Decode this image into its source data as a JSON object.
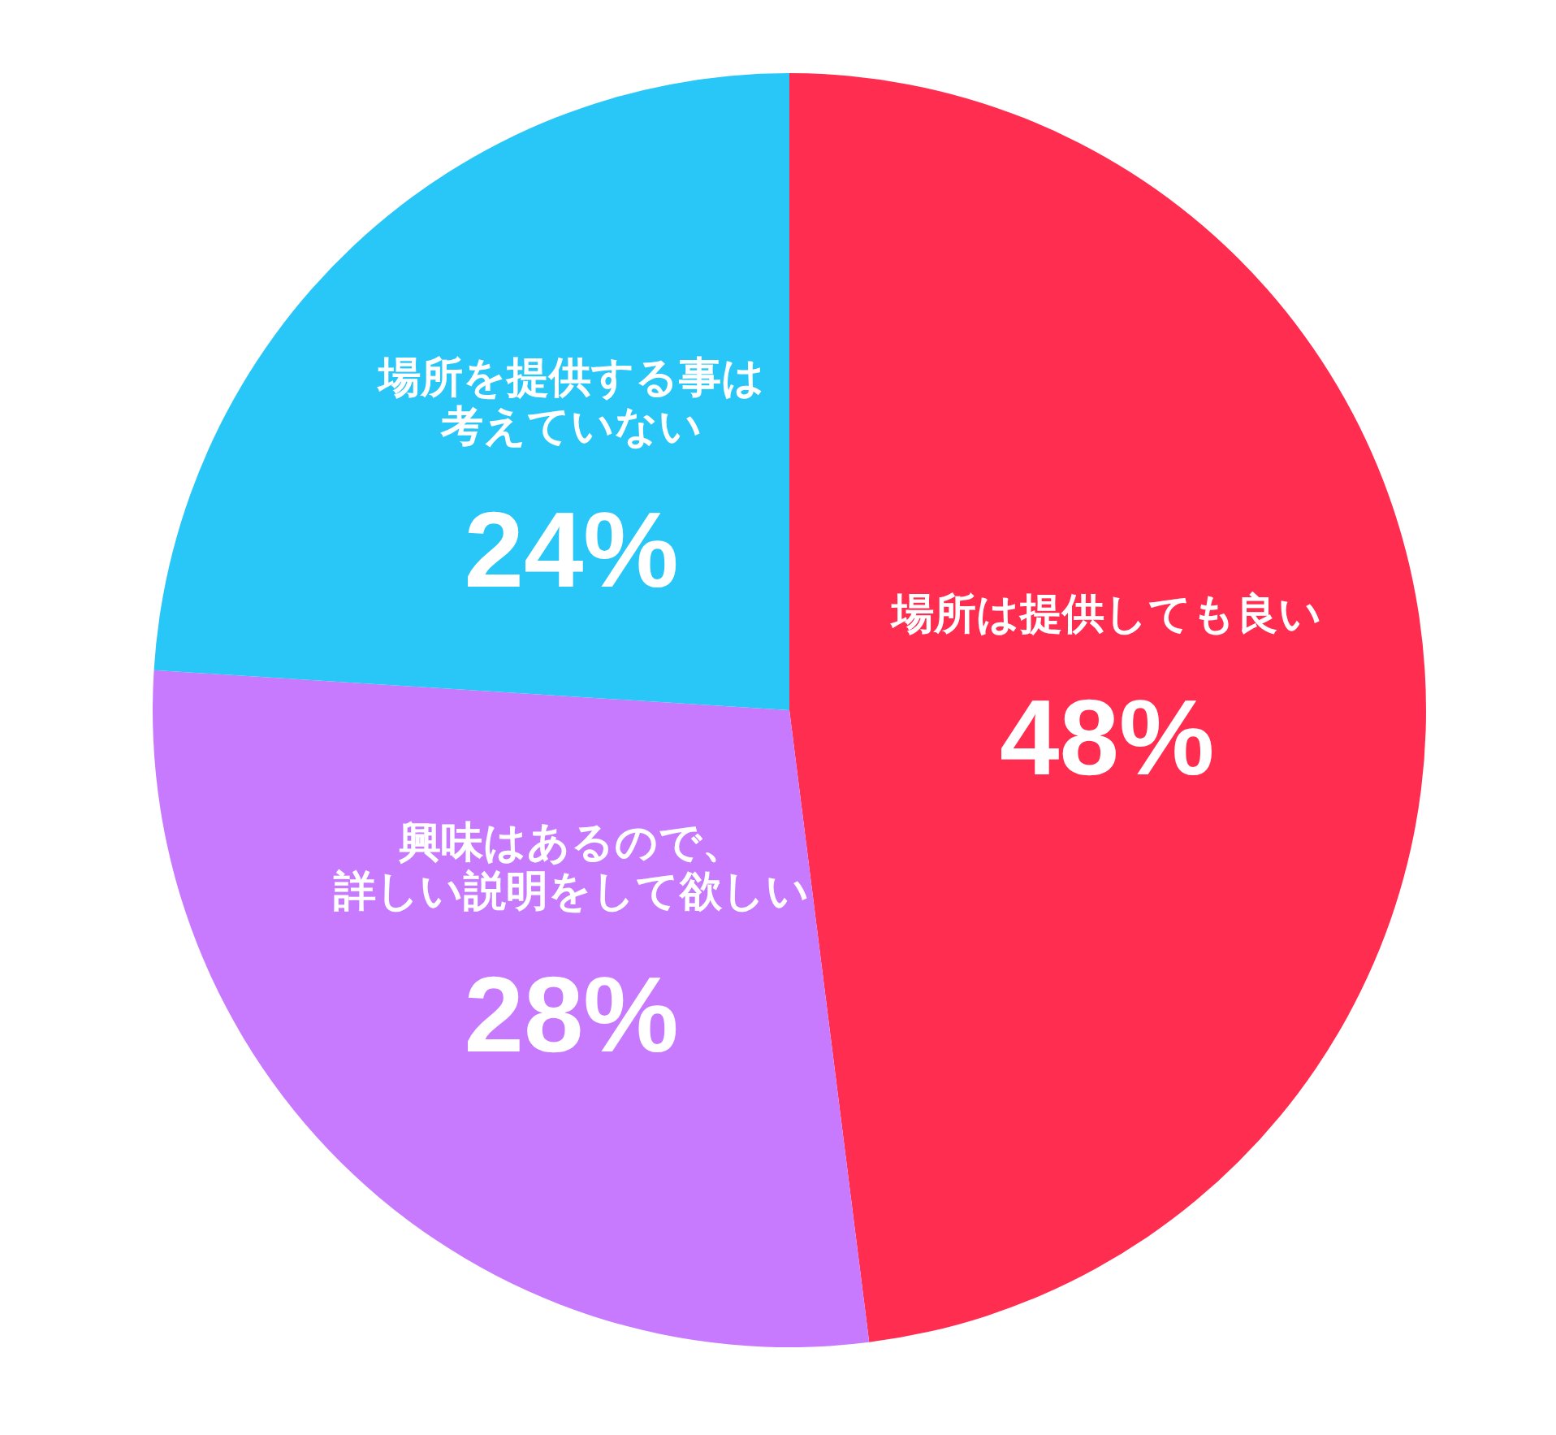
{
  "chart_data": {
    "type": "pie",
    "categories": [
      "場所は提供しても良い",
      "興味はあるので、詳しい説明をして欲しい",
      "場所を提供する事は考えていない"
    ],
    "values": [
      48,
      28,
      24
    ],
    "colors": [
      "#ff2d4f",
      "#c87aff",
      "#29c6f8"
    ],
    "value_labels": [
      "48%",
      "28%",
      "24%"
    ]
  }
}
